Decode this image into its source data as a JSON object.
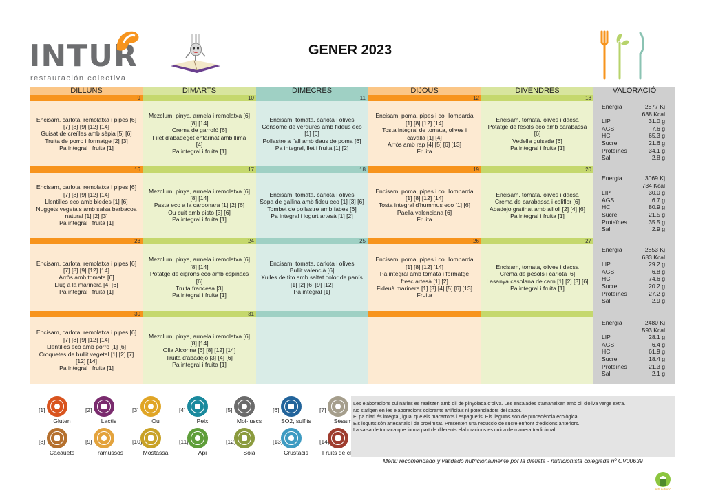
{
  "brand": {
    "name": "INTUR",
    "subtitle": "restauración colectiva"
  },
  "title": "GENER 2023",
  "colors": {
    "orange": "#f7941d",
    "green": "#c5d86d",
    "teal": "#9fd0c4",
    "valoracio": "#cfcfcf"
  },
  "headers": [
    "DILLUNS",
    "DIMARTS",
    "DIMECRES",
    "DIJOUS",
    "DIVENDRES",
    "VALORACIÓ"
  ],
  "weeks": [
    {
      "dates": [
        "9",
        "10",
        "11",
        "12",
        "13"
      ],
      "days": [
        [
          "Encisam, carlota, remolatxa i pipes [6]",
          "[7] [8] [9] [12] [14]",
          "Guisat de creïlles amb sèpia [5] [6]",
          "Truita de porro i formatge [2] [3]",
          "Pa integral i fruita [1]"
        ],
        [
          "Mezclum, pinya, armela i remolatxa [6]",
          "[8] [14]",
          "Crema de garrofó [6]",
          "Filet d'abadeget enfarinat amb llima",
          "[4]",
          "Pa integral i fruita [1]"
        ],
        [
          "Encisam, tomata, carlota i olives",
          "Consome de verdures amb fideus eco",
          "[1] [6]",
          "Pollastre a l'all amb daus de poma [6]",
          "Pa integral, llet i fruita [1] [2]"
        ],
        [
          "Encisam, poma, pipes i col llombarda",
          "[1] [8] [12] [14]",
          "Tosta integral de tomata, olives i",
          "cavalla [1] [4]",
          "Arròs amb rap [4] [5] [6] [13]",
          "Fruita"
        ],
        [
          "Encisam, tomata, olives i dacsa",
          "Potatge de fesols eco amb carabassa",
          "[6]",
          "Vedella guisada [6]",
          "Pa integral i fruita [1]"
        ]
      ],
      "valoracio": [
        {
          "k": "Energia",
          "v": "2877 Kj"
        },
        {
          "k": "",
          "v": "688 Kcal"
        },
        {
          "k": "LIP",
          "v": "31.0 g"
        },
        {
          "k": "AGS",
          "v": "7.6 g"
        },
        {
          "k": "HC",
          "v": "65.3 g"
        },
        {
          "k": "Sucre",
          "v": "21.6 g"
        },
        {
          "k": "Proteïnes",
          "v": "34.1 g"
        },
        {
          "k": "Sal",
          "v": "2.8 g"
        }
      ]
    },
    {
      "dates": [
        "16",
        "17",
        "18",
        "19",
        "20"
      ],
      "days": [
        [
          "Encisam, carlota, remolatxa i pipes [6]",
          "[7] [8] [9] [12] [14]",
          "Llentilles eco amb bledes [1] [6]",
          "Nuggets vegetals amb salsa barbacoa",
          "natural [1] [2] [3]",
          "Pa integral i fruita [1]"
        ],
        [
          "Mezclum, pinya, armela i remolatxa [6]",
          "[8] [14]",
          "Pasta eco a la carbonara [1] [2] [6]",
          "Ou cuit amb pisto [3] [6]",
          "Pa integral i fruita [1]"
        ],
        [
          "Encisam, tomata, carlota i olives",
          "Sopa de gallina amb fideu eco [1] [3] [6]",
          "Tombet de pollastre amb fabes [6]",
          "Pa integral i iogurt artesà [1] [2]"
        ],
        [
          "Encisam, poma, pipes i col llombarda",
          "[1] [8] [12] [14]",
          "Tosta integral d'hummus eco [1] [6]",
          "Paella valenciana [6]",
          "Fruita"
        ],
        [
          "Encisam, tomata, olives i dacsa",
          "Crema de carabassa i coliflor [6]",
          "Abadejo gratinat amb allioli [2] [4] [6]",
          "Pa integral i fruita [1]"
        ]
      ],
      "valoracio": [
        {
          "k": "Energia",
          "v": "3069 Kj"
        },
        {
          "k": "",
          "v": "734 Kcal"
        },
        {
          "k": "LIP",
          "v": "30.0 g"
        },
        {
          "k": "AGS",
          "v": "6.7 g"
        },
        {
          "k": "HC",
          "v": "80.9 g"
        },
        {
          "k": "Sucre",
          "v": "21.5 g"
        },
        {
          "k": "Proteïnes",
          "v": "35.5 g"
        },
        {
          "k": "Sal",
          "v": "2.9 g"
        }
      ]
    },
    {
      "dates": [
        "23",
        "24",
        "25",
        "26",
        "27"
      ],
      "days": [
        [
          "Encisam, carlota, remolatxa i pipes [6]",
          "[7] [8] [9] [12] [14]",
          "Arròs amb tomata [6]",
          "Lluç a la marinera [4] [6]",
          "Pa integral i fruita [1]"
        ],
        [
          "Mezclum, pinya, armela i remolatxa [6]",
          "[8] [14]",
          "Potatge de cigrons eco amb espinacs",
          "[6]",
          "Truita francesa [3]",
          "Pa integral i fruita [1]"
        ],
        [
          "Encisam, tomata, carlota i olives",
          "Bullit valencià [6]",
          "Xulles de tito amb saltat color de panís",
          "[1] [2] [6] [9] [12]",
          "Pa integral [1]"
        ],
        [
          "Encisam, poma, pipes i col llombarda",
          "[1] [8] [12] [14]",
          "Pa integral amb tomata i formatge",
          "fresc artesà [1] [2]",
          "Fideuà marinera [1] [3] [4] [5] [6] [13]",
          "Fruita"
        ],
        [
          "Encisam, tomata, olives i dacsa",
          "Crema de pèsols i carlota [6]",
          "Lasanya casolana de carn [1] [2] [3] [6]",
          "Pa integral i fruita [1]"
        ]
      ],
      "valoracio": [
        {
          "k": "Energia",
          "v": "2853 Kj"
        },
        {
          "k": "",
          "v": "683 Kcal"
        },
        {
          "k": "LIP",
          "v": "29.2 g"
        },
        {
          "k": "AGS",
          "v": "6.8 g"
        },
        {
          "k": "HC",
          "v": "74.6 g"
        },
        {
          "k": "Sucre",
          "v": "20.2 g"
        },
        {
          "k": "Proteïnes",
          "v": "27.2 g"
        },
        {
          "k": "Sal",
          "v": "2.9 g"
        }
      ]
    },
    {
      "dates": [
        "30",
        "31",
        "",
        "",
        ""
      ],
      "days": [
        [
          "Encisam, carlota, remolatxa i pipes [6]",
          "[7] [8] [9] [12] [14]",
          "Llentilles eco amb porro [1] [6]",
          "Croquetes de bullit vegetal [1] [2] [7]",
          "[12] [14]",
          "Pa integral i fruita [1]"
        ],
        [
          "Mezclum, pinya, armela i remolatxa [6]",
          "[8] [14]",
          "Olla Alcorina [6] [8] [12] [14]",
          "Truita d'abadejo [3] [4] [6]",
          "Pa integral i fruita [1]"
        ],
        [],
        [],
        []
      ],
      "valoracio": [
        {
          "k": "Energia",
          "v": "2480 Kj"
        },
        {
          "k": "",
          "v": "593 Kcal"
        },
        {
          "k": "LIP",
          "v": "28.1 g"
        },
        {
          "k": "AGS",
          "v": "6.4 g"
        },
        {
          "k": "HC",
          "v": "61.9 g"
        },
        {
          "k": "Sucre",
          "v": "18.4 g"
        },
        {
          "k": "Proteïnes",
          "v": "21.3 g"
        },
        {
          "k": "Sal",
          "v": "2.1 g"
        }
      ]
    }
  ],
  "allergens": [
    {
      "num": "[1]",
      "name": "Gluten",
      "icon": "wheat-icon",
      "color": "#d9541e"
    },
    {
      "num": "[2]",
      "name": "Lactis",
      "icon": "milk-icon",
      "color": "#7a2b6e"
    },
    {
      "num": "[3]",
      "name": "Ou",
      "icon": "egg-icon",
      "color": "#e0a526"
    },
    {
      "num": "[4]",
      "name": "Peix",
      "icon": "fish-icon",
      "color": "#1a8a9e"
    },
    {
      "num": "[5]",
      "name": "Mol·luscs",
      "icon": "mollusc-icon",
      "color": "#6b6b6b"
    },
    {
      "num": "[6]",
      "name": "SO2, sulfits",
      "icon": "sulfite-icon",
      "color": "#22649b"
    },
    {
      "num": "[7]",
      "name": "Sèsam",
      "icon": "sesame-icon",
      "color": "#a59e8c"
    },
    {
      "num": "[8]",
      "name": "Cacauets",
      "icon": "peanut-icon",
      "color": "#b5702e"
    },
    {
      "num": "[9]",
      "name": "Tramussos",
      "icon": "lupin-icon",
      "color": "#e3a33d"
    },
    {
      "num": "[10]",
      "name": "Mostassa",
      "icon": "mustard-icon",
      "color": "#c9a227"
    },
    {
      "num": "[11]",
      "name": "Api",
      "icon": "celery-icon",
      "color": "#5f9e3a"
    },
    {
      "num": "[12]",
      "name": "Soia",
      "icon": "soy-icon",
      "color": "#8b9b3e"
    },
    {
      "num": "[13]",
      "name": "Crustacis",
      "icon": "crustacean-icon",
      "color": "#3e9bc2"
    },
    {
      "num": "[14]",
      "name": "Fruits de closca",
      "icon": "nut-icon",
      "color": "#9e3c2e"
    }
  ],
  "notes": [
    "Les elaboracions culinàries es realitzen amb oli de pinyolada d'oliva. Les ensalades s'amaneixen amb oli d'oliva verge extra.",
    "No s'afigen en les elaboracions colorants artificials ni potenciadors del sabor.",
    "El pa diari és integral, igual que els macarrons i espaguetis. Els llegums són de procedència ecològica.",
    "Els iogurts són artesanals i de proximitat. Presenten una reducció de sucre enfront d'edicions anteriors.",
    "La salsa de tomaca que forma part de diferents elaboracions es cuina de manera tradicional."
  ],
  "footer": "Menú recomendado y validado nutricionalmente por la dietista - nutricionista colegiada nº CV00639",
  "bottom_logo_text": "AIS nutrició"
}
